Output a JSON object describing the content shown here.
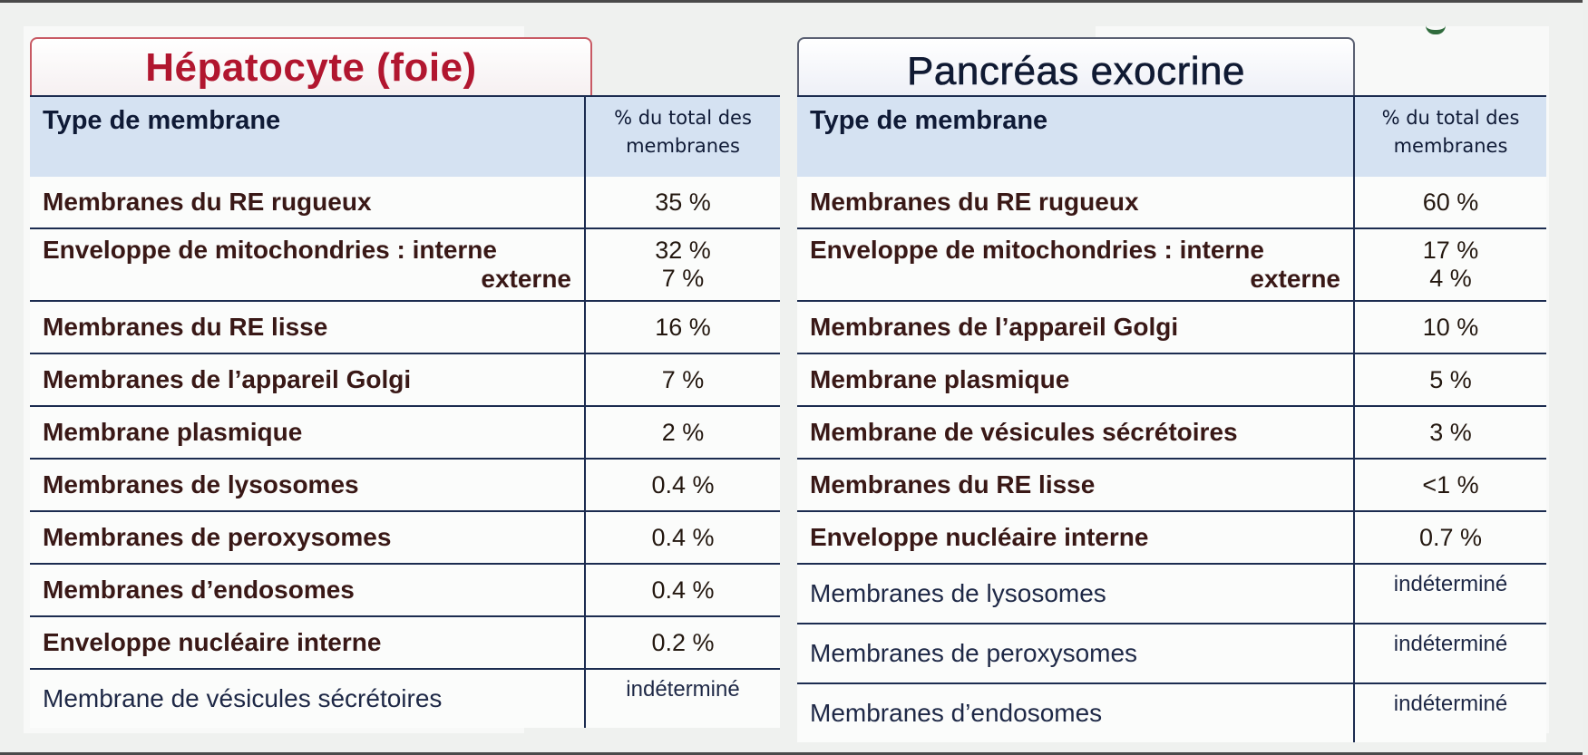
{
  "hepatocyte": {
    "title": "Hépatocyte (foie)",
    "header_type": "Type de membrane",
    "header_pct_1": "% du total des",
    "header_pct_2": "membranes",
    "rows": [
      {
        "label": "Membranes du RE rugueux",
        "value": "35 %"
      },
      {
        "label": "Enveloppe de mitochondries : interne",
        "label2": "externe",
        "value": "32 %",
        "value2": "7 %"
      },
      {
        "label": "Membranes du RE lisse",
        "value": "16 %"
      },
      {
        "label": "Membranes de l’appareil Golgi",
        "value": "7 %"
      },
      {
        "label": "Membrane plasmique",
        "value": "2 %"
      },
      {
        "label": "Membranes de lysosomes",
        "value": "0.4 %"
      },
      {
        "label": "Membranes de peroxysomes",
        "value": "0.4 %"
      },
      {
        "label": "Membranes d’endosomes",
        "value": "0.4 %"
      },
      {
        "label": "Enveloppe nucléaire interne",
        "value": "0.2 %"
      },
      {
        "label": "Membrane de vésicules sécrétoires",
        "value": "indéterminé"
      }
    ]
  },
  "pancreas": {
    "title": "Pancréas exocrine",
    "header_type": "Type de membrane",
    "header_pct_1": "% du total des",
    "header_pct_2": "membranes",
    "rows": [
      {
        "label": "Membranes du RE rugueux",
        "value": "60 %"
      },
      {
        "label": "Enveloppe de mitochondries : interne",
        "label2": "externe",
        "value": "17 %",
        "value2": "4 %"
      },
      {
        "label": "Membranes de l’appareil Golgi",
        "value": "10 %"
      },
      {
        "label": "Membrane plasmique",
        "value": "5 %"
      },
      {
        "label": "Membrane de vésicules sécrétoires",
        "value": "3 %"
      },
      {
        "label": "Membranes du RE lisse",
        "value": "<1 %"
      },
      {
        "label": "Enveloppe nucléaire interne",
        "value": "0.7 %"
      },
      {
        "label": "Membranes de lysosomes",
        "value": "indéterminé"
      },
      {
        "label": "Membranes de peroxysomes",
        "value": "indéterminé"
      },
      {
        "label": "Membranes d’endosomes",
        "value": "indéterminé"
      }
    ]
  }
}
